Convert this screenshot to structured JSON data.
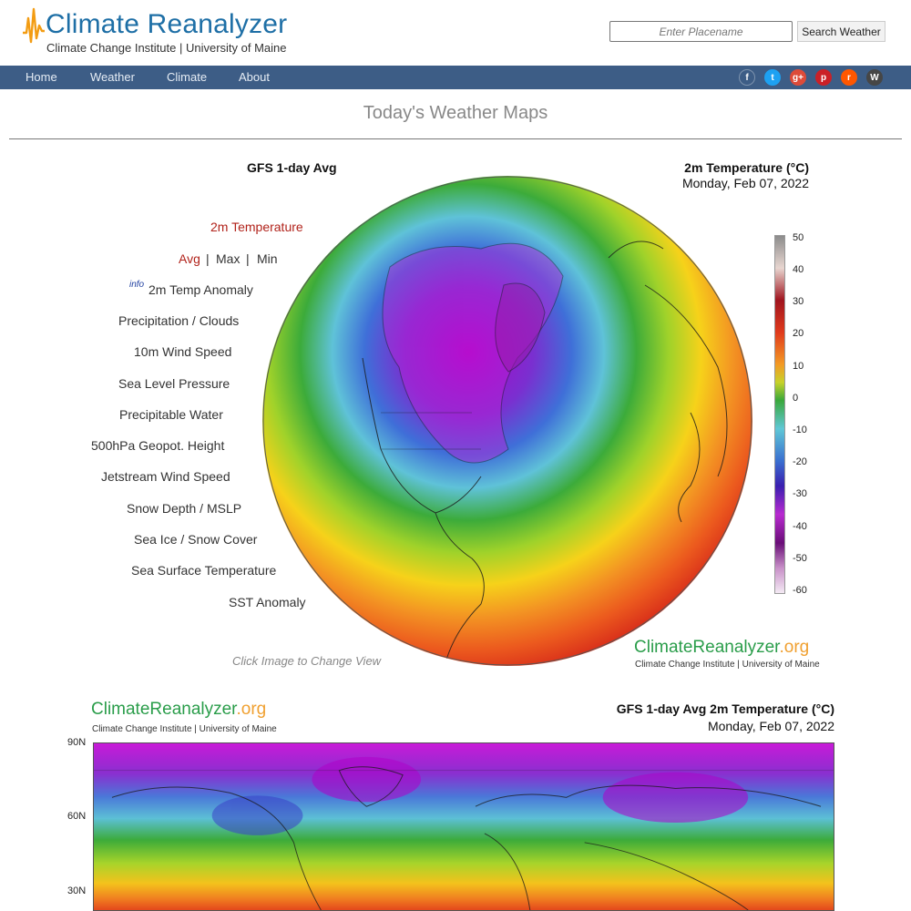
{
  "header": {
    "logo_title": "Climate Reanalyzer",
    "logo_subtitle": "Climate Change Institute | University of Maine",
    "search_placeholder": "Enter Placename",
    "search_button": "Search Weather"
  },
  "nav": {
    "items": [
      "Home",
      "Weather",
      "Climate",
      "About"
    ],
    "social": [
      {
        "icon": "facebook-icon",
        "glyph": "f",
        "color": "#3d5d86"
      },
      {
        "icon": "twitter-icon",
        "glyph": "t",
        "color": "#1da1f2"
      },
      {
        "icon": "google-plus-icon",
        "glyph": "g+",
        "color": "#dd4b39"
      },
      {
        "icon": "pinterest-icon",
        "glyph": "p",
        "color": "#cb2027"
      },
      {
        "icon": "reddit-icon",
        "glyph": "r",
        "color": "#ff5700"
      },
      {
        "icon": "wordpress-icon",
        "glyph": "W",
        "color": "#464646"
      }
    ]
  },
  "page_title": "Today's Weather Maps",
  "globe_panel": {
    "model": "GFS 1-day Avg",
    "variable": "2m Temperature (°C)",
    "date": "Monday, Feb 07, 2022",
    "click_hint": "Click Image to Change View",
    "brand_a": "ClimateReanalyzer",
    "brand_b": ".org",
    "brand_sub": "Climate Change Institute | University of Maine",
    "colorbar_labels": [
      "50",
      "40",
      "30",
      "20",
      "10",
      "0",
      "-10",
      "-20",
      "-30",
      "-40",
      "-50",
      "-60"
    ]
  },
  "menu": {
    "temp": "2m Temperature",
    "avg": "Avg",
    "sep": "|",
    "max": "Max",
    "min": "Min",
    "info": "info",
    "anomaly": "2m Temp Anomaly",
    "precip": "Precipitation / Clouds",
    "wind": "10m Wind Speed",
    "slp": "Sea Level Pressure",
    "pw": "Precipitable Water",
    "geopot": "500hPa Geopot. Height",
    "jet": "Jetstream Wind Speed",
    "snow": "Snow Depth / MSLP",
    "seaice": "Sea Ice / Snow Cover",
    "sst": "Sea Surface Temperature",
    "ssta": "SST Anomaly"
  },
  "map_panel": {
    "brand_a": "ClimateReanalyzer",
    "brand_b": ".org",
    "brand_sub": "Climate Change Institute | University of Maine",
    "title": "GFS 1-day Avg 2m Temperature (°C)",
    "date": "Monday, Feb 07, 2022",
    "lat_labels": [
      "90N",
      "60N",
      "30N"
    ]
  },
  "colors": {
    "brand_blue": "#1e6fa6",
    "nav_bg": "#3d5d86",
    "active_red": "#b1221a",
    "brand_green": "#2a9d4a",
    "brand_orange": "#f0a030"
  }
}
